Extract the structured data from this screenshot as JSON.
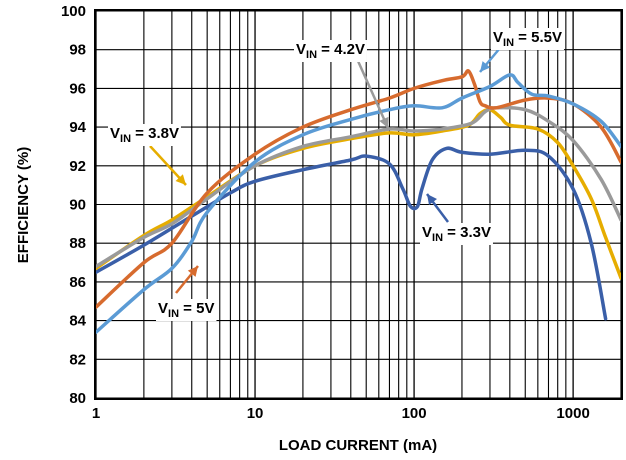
{
  "chart_data": {
    "type": "line",
    "title": "",
    "xlabel": "LOAD CURRENT (mA)",
    "ylabel": "EFFICIENCY (%)",
    "xscale": "log",
    "xlim": [
      1,
      2000
    ],
    "ylim": [
      80,
      100
    ],
    "grid": true,
    "x_ticks": [
      1,
      10,
      100,
      1000
    ],
    "x_tick_labels": [
      "1",
      "10",
      "100",
      "1000"
    ],
    "y_ticks": [
      80,
      82,
      84,
      86,
      88,
      90,
      92,
      94,
      96,
      98,
      100
    ],
    "y_tick_labels": [
      "80",
      "82",
      "84",
      "86",
      "88",
      "90",
      "92",
      "94",
      "96",
      "98",
      "100"
    ],
    "series": [
      {
        "name": "VIN = 3.3V",
        "color": "#3A5FA8",
        "points": [
          [
            1,
            86.5
          ],
          [
            2,
            87.9
          ],
          [
            4,
            89.4
          ],
          [
            7,
            90.6
          ],
          [
            10,
            91.2
          ],
          [
            20,
            91.8
          ],
          [
            40,
            92.3
          ],
          [
            50,
            92.5
          ],
          [
            70,
            92.1
          ],
          [
            85,
            90.8
          ],
          [
            95,
            89.9
          ],
          [
            105,
            89.9
          ],
          [
            112,
            90.8
          ],
          [
            130,
            92.3
          ],
          [
            160,
            92.9
          ],
          [
            200,
            92.7
          ],
          [
            300,
            92.6
          ],
          [
            500,
            92.8
          ],
          [
            700,
            92.5
          ],
          [
            1000,
            90.8
          ],
          [
            1300,
            88.0
          ],
          [
            1600,
            84.1
          ]
        ]
      },
      {
        "name": "VIN = 3.8V",
        "color": "#E6AD00",
        "points": [
          [
            1,
            86.7
          ],
          [
            2,
            88.4
          ],
          [
            3,
            89.2
          ],
          [
            5,
            90.4
          ],
          [
            10,
            92.0
          ],
          [
            20,
            92.9
          ],
          [
            40,
            93.4
          ],
          [
            70,
            93.7
          ],
          [
            100,
            93.6
          ],
          [
            150,
            93.8
          ],
          [
            220,
            94.1
          ],
          [
            260,
            94.7
          ],
          [
            300,
            94.9
          ],
          [
            350,
            94.5
          ],
          [
            400,
            94.1
          ],
          [
            600,
            93.9
          ],
          [
            800,
            93.2
          ],
          [
            1000,
            92.0
          ],
          [
            1300,
            90.3
          ],
          [
            1600,
            88.3
          ],
          [
            2000,
            86.2
          ]
        ]
      },
      {
        "name": "VIN = 4.2V",
        "color": "#9A9A9A",
        "points": [
          [
            1,
            86.8
          ],
          [
            2,
            88.3
          ],
          [
            3,
            89.0
          ],
          [
            5,
            90.3
          ],
          [
            10,
            92.0
          ],
          [
            20,
            93.0
          ],
          [
            40,
            93.5
          ],
          [
            70,
            93.9
          ],
          [
            100,
            93.8
          ],
          [
            150,
            93.9
          ],
          [
            230,
            94.2
          ],
          [
            280,
            94.8
          ],
          [
            330,
            95.0
          ],
          [
            500,
            94.9
          ],
          [
            700,
            94.3
          ],
          [
            1000,
            93.3
          ],
          [
            1500,
            91.3
          ],
          [
            2000,
            89.2
          ]
        ]
      },
      {
        "name": "VIN = 5V",
        "color": "#D76B2E",
        "points": [
          [
            1,
            84.7
          ],
          [
            2,
            87.0
          ],
          [
            3,
            88.0
          ],
          [
            5,
            90.6
          ],
          [
            10,
            92.6
          ],
          [
            20,
            94.0
          ],
          [
            40,
            94.9
          ],
          [
            70,
            95.5
          ],
          [
            100,
            96.0
          ],
          [
            150,
            96.4
          ],
          [
            200,
            96.6
          ],
          [
            220,
            96.9
          ],
          [
            240,
            96.2
          ],
          [
            260,
            95.3
          ],
          [
            280,
            95.1
          ],
          [
            330,
            95.0
          ],
          [
            500,
            95.4
          ],
          [
            700,
            95.5
          ],
          [
            1000,
            95.2
          ],
          [
            1500,
            94.0
          ],
          [
            2000,
            92.2
          ]
        ]
      },
      {
        "name": "VIN = 5.5V",
        "color": "#5B9BD5",
        "points": [
          [
            1,
            83.4
          ],
          [
            2,
            85.6
          ],
          [
            3,
            86.7
          ],
          [
            4,
            88.1
          ],
          [
            5,
            89.6
          ],
          [
            10,
            92.2
          ],
          [
            20,
            93.6
          ],
          [
            40,
            94.4
          ],
          [
            70,
            94.9
          ],
          [
            100,
            95.1
          ],
          [
            150,
            95.0
          ],
          [
            200,
            95.5
          ],
          [
            300,
            96.1
          ],
          [
            400,
            96.7
          ],
          [
            450,
            96.3
          ],
          [
            550,
            95.7
          ],
          [
            700,
            95.6
          ],
          [
            1000,
            95.2
          ],
          [
            1500,
            94.3
          ],
          [
            2000,
            93.0
          ]
        ]
      }
    ],
    "annotations": [
      {
        "main": "V",
        "sub": "IN",
        "rest": " = 5.5V",
        "series": "VIN = 5.5V"
      },
      {
        "main": "V",
        "sub": "IN",
        "rest": " = 4.2V",
        "series": "VIN = 4.2V"
      },
      {
        "main": "V",
        "sub": "IN",
        "rest": " = 3.8V",
        "series": "VIN = 3.8V"
      },
      {
        "main": "V",
        "sub": "IN",
        "rest": " = 3.3V",
        "series": "VIN = 3.3V"
      },
      {
        "main": "V",
        "sub": "IN",
        "rest": " = 5V",
        "series": "VIN = 5V"
      }
    ]
  }
}
